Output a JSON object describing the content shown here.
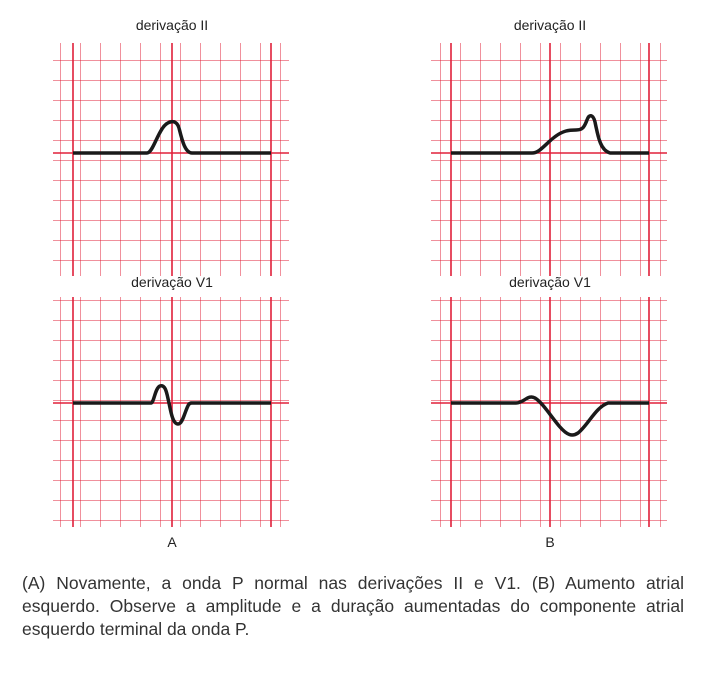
{
  "panels": [
    {
      "letter": "A",
      "top_lead": "derivação II",
      "bottom_lead": "derivação V1"
    },
    {
      "letter": "B",
      "top_lead": "derivação II",
      "bottom_lead": "derivação V1"
    }
  ],
  "caption": "(A) Novamente, a onda P normal nas derivações II e V1. (B) Aumento atrial esquerdo. Observe a amplitude e a duração aumentadas do componente atrial esquerdo terminal da onda P.",
  "colors": {
    "grid": "#e0203a",
    "trace": "#1a1a1a",
    "text": "#222222"
  }
}
